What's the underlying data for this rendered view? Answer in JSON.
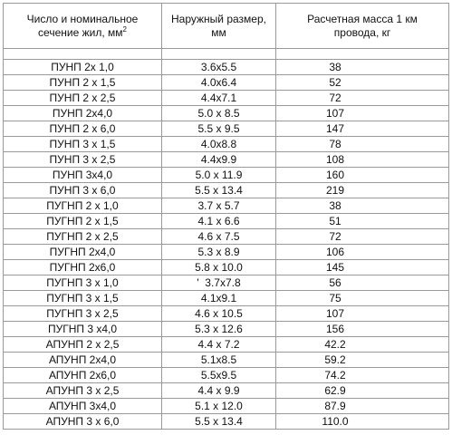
{
  "table": {
    "header": [
      [
        "Число и номинальное сечение жил, мм",
        "2"
      ],
      [
        "Наружный размер, мм"
      ],
      [
        "Расчетная масса 1 км провода, кг"
      ]
    ],
    "rows": [
      [
        "ПУНП 2х 1,0",
        "3.6х5.5",
        "38"
      ],
      [
        "ПУНП 2 х 1,5",
        "4.0х6.4",
        "52"
      ],
      [
        "ПУНП 2 х 2,5",
        "4.4х7.1",
        "72"
      ],
      [
        "ПУНП 2х4,0",
        "5.0 х 8.5",
        "107"
      ],
      [
        "ПУНП 2 х 6,0",
        "5.5 х 9.5",
        "147"
      ],
      [
        "ПУНП 3 х 1,5",
        "4.0х8.8",
        "78"
      ],
      [
        "ПУНП 3 х 2,5",
        "4.4х9.9",
        "108"
      ],
      [
        "ПУНП 3х4,0",
        "5.0 х 11.9",
        "160"
      ],
      [
        "ПУНП 3 х 6,0",
        "5.5 х 13.4",
        "219"
      ],
      [
        "ПУГНП 2 х 1,0",
        "3.7 х 5.7",
        "38"
      ],
      [
        "ПУГНП 2 х 1,5",
        "4.1 х 6.6",
        "51"
      ],
      [
        "ПУГНП 2 х 2,5",
        "4.6 х 7.5",
        "72"
      ],
      [
        "ПУГНП 2х4,0",
        "5.3 х 8.9",
        "106"
      ],
      [
        "ПУГНП 2х6,0",
        "5.8 х 10.0",
        "145"
      ],
      [
        "ПУГНП 3 х 1,0",
        "'  3.7х7.8",
        "56"
      ],
      [
        "ПУГНП 3 х 1,5",
        "4.1х9.1",
        "75"
      ],
      [
        "ПУГНП 3 х 2,5",
        "4.6 х 10.5",
        "107"
      ],
      [
        "ПУГНП 3 х4,0",
        "5.3 х 12.6",
        "156"
      ],
      [
        "АПУНП 2 х 2,5",
        "4.4 х 7.2",
        "42.2"
      ],
      [
        "АПУНП 2х4,0",
        "5.1х8.5",
        "59.2"
      ],
      [
        "АПУНП 2х6,0",
        "5.5х9.5",
        "74.2"
      ],
      [
        "АПУНП 3 х 2,5",
        "4.4 х 9.9",
        "62.9"
      ],
      [
        "АПУНП 3х4,0",
        "5.1 х 12.0",
        "87.9"
      ],
      [
        "АПУНП 3 х 6,0",
        "5.5 х 13.4",
        "110.0"
      ]
    ]
  }
}
